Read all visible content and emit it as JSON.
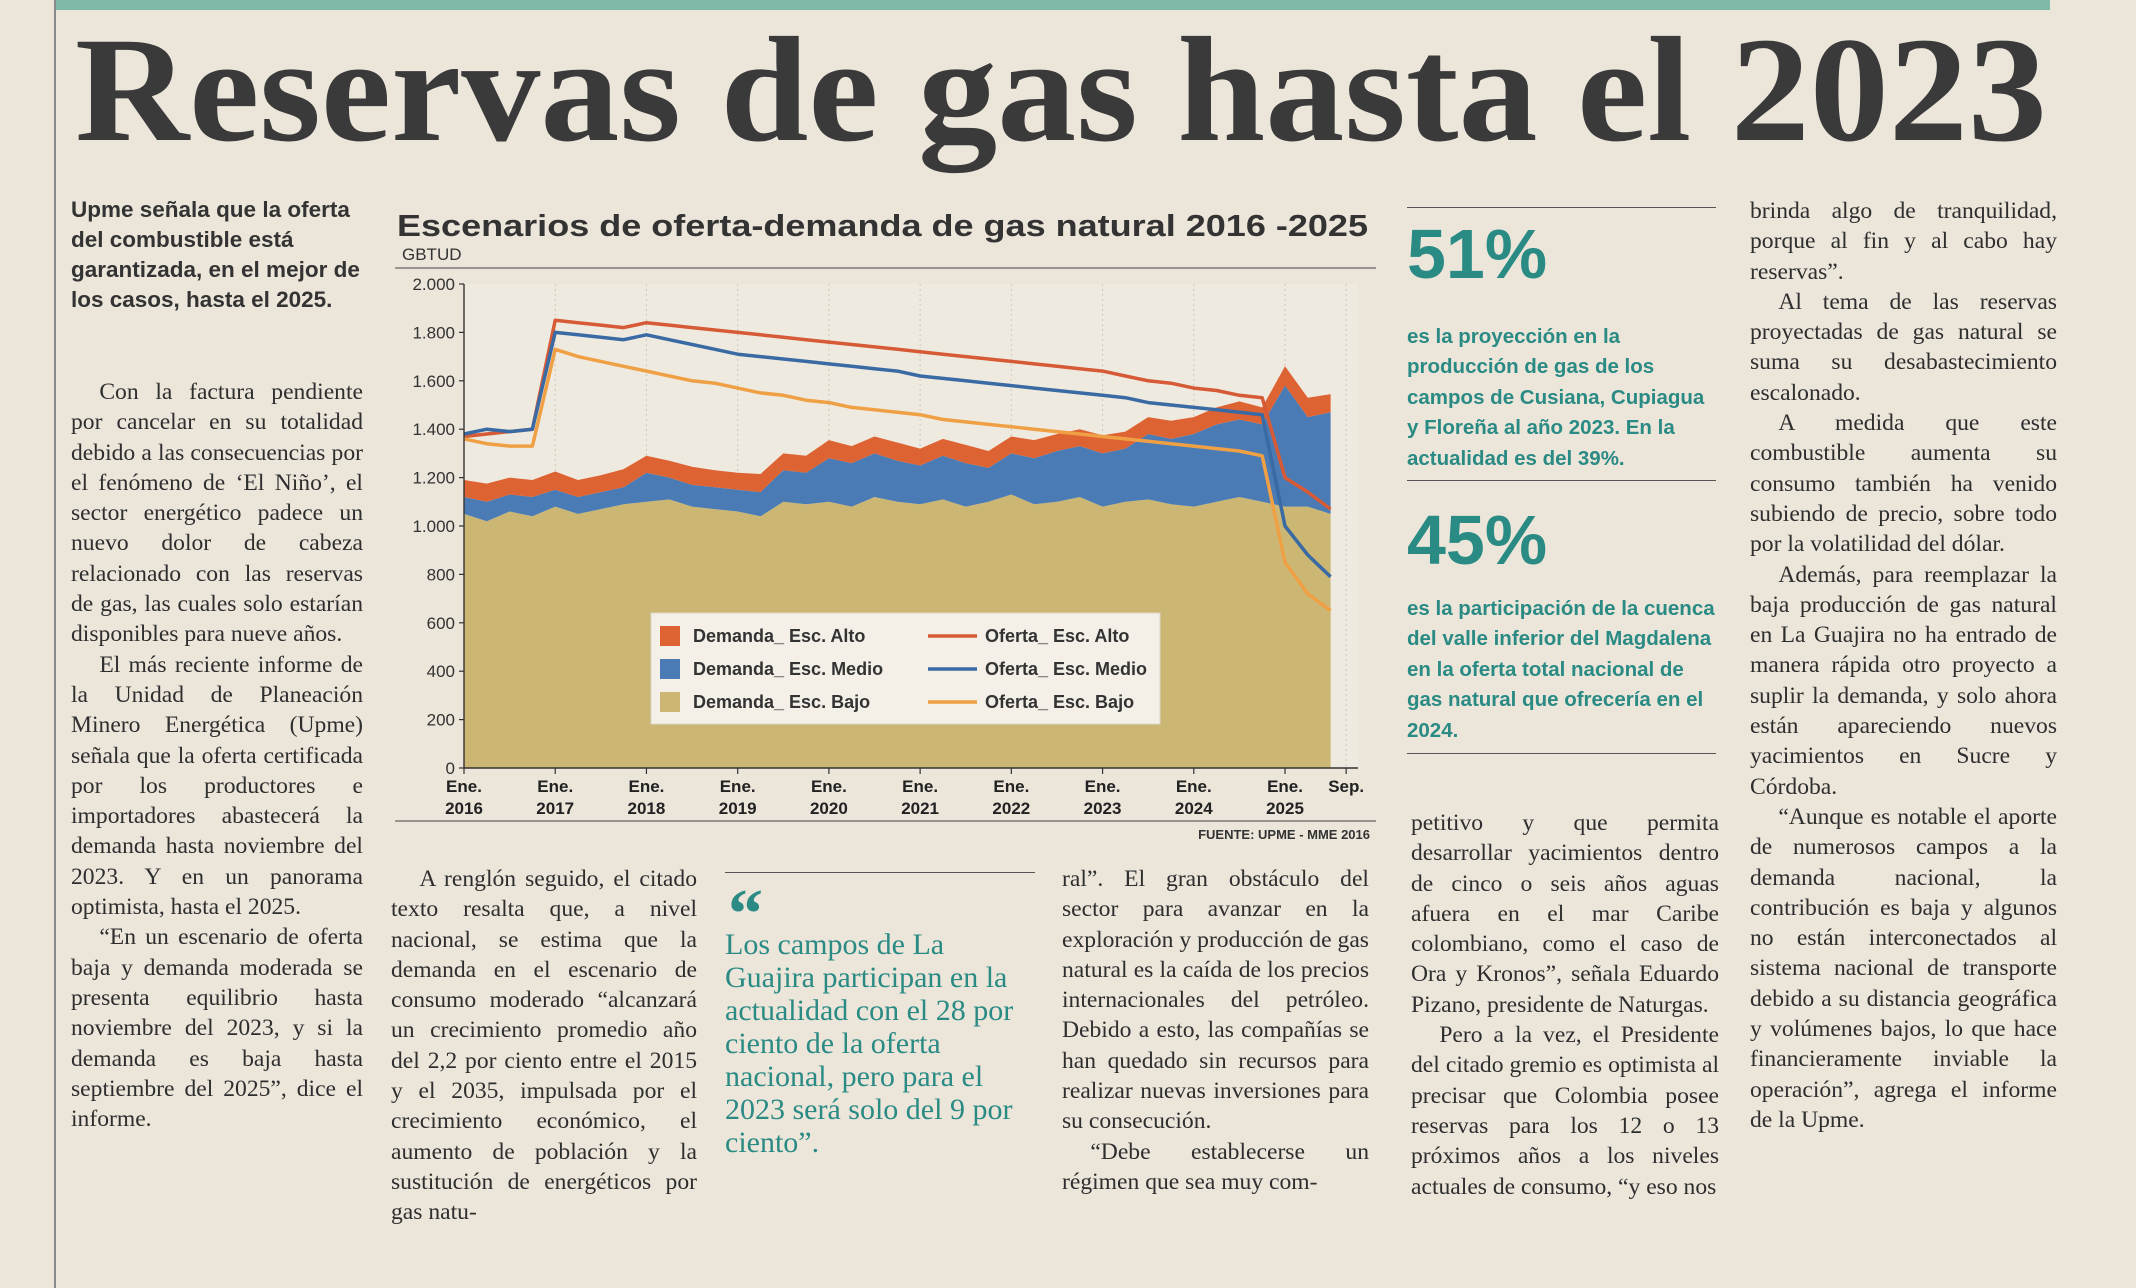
{
  "header": {
    "title": "Reservas de gas hasta el 2023"
  },
  "lead": "Upme señala que la oferta del combustible está garantizada, en el mejor de los casos, hasta el 2025.",
  "column_1": [
    "Con la factura pendiente por cancelar en su totalidad debido a las consecuencias por el fenómeno de ‘El Niño’, el sector energético padece un nuevo dolor de cabeza relacionado con las reservas de gas, las cuales solo estarían disponibles para nueve años.",
    "El más reciente informe de la Unidad de Planeación Minero Energética (Upme) señala que la oferta certificada por los productores e importadores abastecerá la demanda hasta noviembre del 2023. Y en un panorama optimista, hasta el 2025.",
    "“En un escenario de oferta baja y demanda moderada se presenta equilibrio hasta noviembre del 2023, y si la demanda es baja hasta septiembre del 2025”, dice el informe."
  ],
  "column_2": [
    "A renglón seguido, el citado texto resalta que, a nivel nacional, se estima que la demanda en el escenario de consumo moderado “alcanzará un crecimiento promedio año del 2,2 por ciento entre el 2015 y el 2035, impulsada por el crecimiento económico, el aumento de población y la sustitución de energéticos por gas natu-"
  ],
  "quote": {
    "mark": "“",
    "text": "Los campos de La Guajira participan en la actualidad con el 28 por ciento de la oferta nacional, pero para el 2023 será solo del 9 por ciento”."
  },
  "column_4": [
    "ral”. El gran obstáculo del sector para avanzar en la exploración y producción de gas natural es la caída de los precios internacionales del petróleo. Debido a esto, las compañías se han quedado sin recursos para realizar nuevas inversiones para su consecución.",
    "“Debe establecerse un régimen que sea muy com-"
  ],
  "column_5": [
    "petitivo y que permita desarrollar yacimientos dentro de cinco o seis años aguas afuera en el mar Caribe colombiano, como el caso de Ora y Kronos”, señala Eduardo Pizano, presidente de Naturgas.",
    "Pero a la vez, el Presidente del citado gremio es optimista al precisar que Colombia posee reservas para los 12 o 13 próximos años a los niveles actuales de consumo, “y eso nos"
  ],
  "column_6": [
    "brinda algo de tranquilidad, porque al fin y al cabo hay reservas”.",
    "Al tema de las reservas proyectadas de gas natural se suma su desabastecimiento escalonado.",
    "A medida que este combustible aumenta su consumo también ha venido subiendo de precio, sobre todo por la volatilidad del dólar.",
    "Además, para reemplazar la baja producción de gas natural en La Guajira no ha entrado de manera rápida otro proyecto a suplir la demanda, y solo ahora están apareciendo nuevos yacimientos en Sucre y Córdoba.",
    "“Aunque es notable el aporte de numerosos campos a la demanda nacional, la contribución es baja y algunos no están interconectados al sistema nacional de transporte debido a su distancia geográfica y volúmenes bajos, lo que hace financieramente inviable la operación”, agrega el informe de la Upme."
  ],
  "stats": [
    {
      "value": "51%",
      "text": "es la proyección en la producción de gas de los campos de Cusiana, Cupiagua y Floreña al año 2023. En la actualidad es del 39%."
    },
    {
      "value": "45%",
      "text": "es la participación de la cuenca del valle inferior del Magdalena en la oferta total nacional de gas natural que ofrecería en el 2024."
    }
  ],
  "chart_data": {
    "type": "area",
    "title": "Escenarios de oferta-demanda de gas natural 2016 -2025",
    "y_label": "GBTUD",
    "source": "FUENTE: UPME - MME 2016",
    "stacked": true,
    "x": [
      2016,
      2016.25,
      2016.5,
      2016.75,
      2017,
      2017.25,
      2017.5,
      2017.75,
      2018,
      2018.25,
      2018.5,
      2018.75,
      2019,
      2019.25,
      2019.5,
      2019.75,
      2020,
      2020.25,
      2020.5,
      2020.75,
      2021,
      2021.25,
      2021.5,
      2021.75,
      2022,
      2022.25,
      2022.5,
      2022.75,
      2023,
      2023.25,
      2023.5,
      2023.75,
      2024,
      2024.25,
      2024.5,
      2024.75,
      2025,
      2025.25,
      2025.5
    ],
    "xlim": [
      2016,
      2025.8
    ],
    "xticks": [
      {
        "value": 2016,
        "label": "Ene. 2016"
      },
      {
        "value": 2017,
        "label": "Ene. 2017"
      },
      {
        "value": 2018,
        "label": "Ene. 2018"
      },
      {
        "value": 2019,
        "label": "Ene. 2019"
      },
      {
        "value": 2020,
        "label": "Ene. 2020"
      },
      {
        "value": 2021,
        "label": "Ene. 2021"
      },
      {
        "value": 2022,
        "label": "Ene. 2022"
      },
      {
        "value": 2023,
        "label": "Ene. 2023"
      },
      {
        "value": 2024,
        "label": "Ene. 2024"
      },
      {
        "value": 2025,
        "label": "Ene. 2025"
      },
      {
        "value": 2025.67,
        "label": "Sep."
      }
    ],
    "ylim": [
      0,
      2000
    ],
    "yticks": [
      0,
      200,
      400,
      600,
      800,
      {
        "value": 1000,
        "label": "1.000"
      },
      {
        "value": 1200,
        "label": "1.200"
      },
      {
        "value": 1400,
        "label": "1.400"
      },
      {
        "value": 1600,
        "label": "1.600"
      },
      {
        "value": 1800,
        "label": "1.800"
      },
      {
        "value": 2000,
        "label": "2.000"
      }
    ],
    "series": [
      {
        "name": "Demanda_ Esc. Alto",
        "type": "area",
        "color": "#de6333",
        "values": [
          70,
          75,
          70,
          70,
          75,
          70,
          70,
          75,
          70,
          70,
          75,
          70,
          70,
          75,
          70,
          70,
          75,
          70,
          70,
          75,
          70,
          70,
          75,
          70,
          70,
          75,
          70,
          70,
          75,
          70,
          70,
          75,
          70,
          70,
          75,
          70,
          80,
          80,
          75
        ]
      },
      {
        "name": "Demanda_ Esc. Medio",
        "type": "area",
        "color": "#4a7bb5",
        "values": [
          70,
          80,
          70,
          80,
          70,
          70,
          70,
          70,
          120,
          90,
          90,
          90,
          90,
          100,
          130,
          130,
          180,
          180,
          180,
          170,
          160,
          180,
          180,
          140,
          170,
          190,
          210,
          210,
          220,
          220,
          270,
          270,
          300,
          320,
          320,
          320,
          500,
          370,
          420
        ]
      },
      {
        "name": "Demanda_ Esc. Bajo",
        "type": "area",
        "color": "#cbb673",
        "values": [
          1050,
          1020,
          1060,
          1040,
          1080,
          1050,
          1070,
          1090,
          1100,
          1110,
          1080,
          1070,
          1060,
          1040,
          1100,
          1090,
          1100,
          1080,
          1120,
          1100,
          1090,
          1110,
          1080,
          1100,
          1130,
          1090,
          1100,
          1120,
          1080,
          1100,
          1110,
          1090,
          1080,
          1100,
          1120,
          1100,
          1080,
          1080,
          1050
        ]
      },
      {
        "name": "Oferta_ Esc. Alto",
        "type": "line",
        "color": "#d65a35",
        "values": [
          1370,
          1380,
          1390,
          1400,
          1850,
          1840,
          1830,
          1820,
          1840,
          1830,
          1820,
          1810,
          1800,
          1790,
          1780,
          1770,
          1760,
          1750,
          1740,
          1730,
          1720,
          1710,
          1700,
          1690,
          1680,
          1670,
          1660,
          1650,
          1640,
          1620,
          1600,
          1590,
          1570,
          1560,
          1540,
          1530,
          1200,
          1140,
          1070
        ]
      },
      {
        "name": "Oferta_ Esc. Medio",
        "type": "line",
        "color": "#3a6aa3",
        "values": [
          1380,
          1400,
          1390,
          1400,
          1800,
          1790,
          1780,
          1770,
          1790,
          1770,
          1750,
          1730,
          1710,
          1700,
          1690,
          1680,
          1670,
          1660,
          1650,
          1640,
          1620,
          1610,
          1600,
          1590,
          1580,
          1570,
          1560,
          1550,
          1540,
          1530,
          1510,
          1500,
          1490,
          1480,
          1470,
          1460,
          1000,
          880,
          790
        ]
      },
      {
        "name": "Oferta_ Esc. Bajo",
        "type": "line",
        "color": "#f0a044",
        "values": [
          1360,
          1340,
          1330,
          1330,
          1730,
          1700,
          1680,
          1660,
          1640,
          1620,
          1600,
          1590,
          1570,
          1550,
          1540,
          1520,
          1510,
          1490,
          1480,
          1470,
          1460,
          1440,
          1430,
          1420,
          1410,
          1400,
          1390,
          1380,
          1370,
          1360,
          1350,
          1340,
          1330,
          1320,
          1310,
          1290,
          850,
          720,
          650
        ]
      }
    ]
  }
}
